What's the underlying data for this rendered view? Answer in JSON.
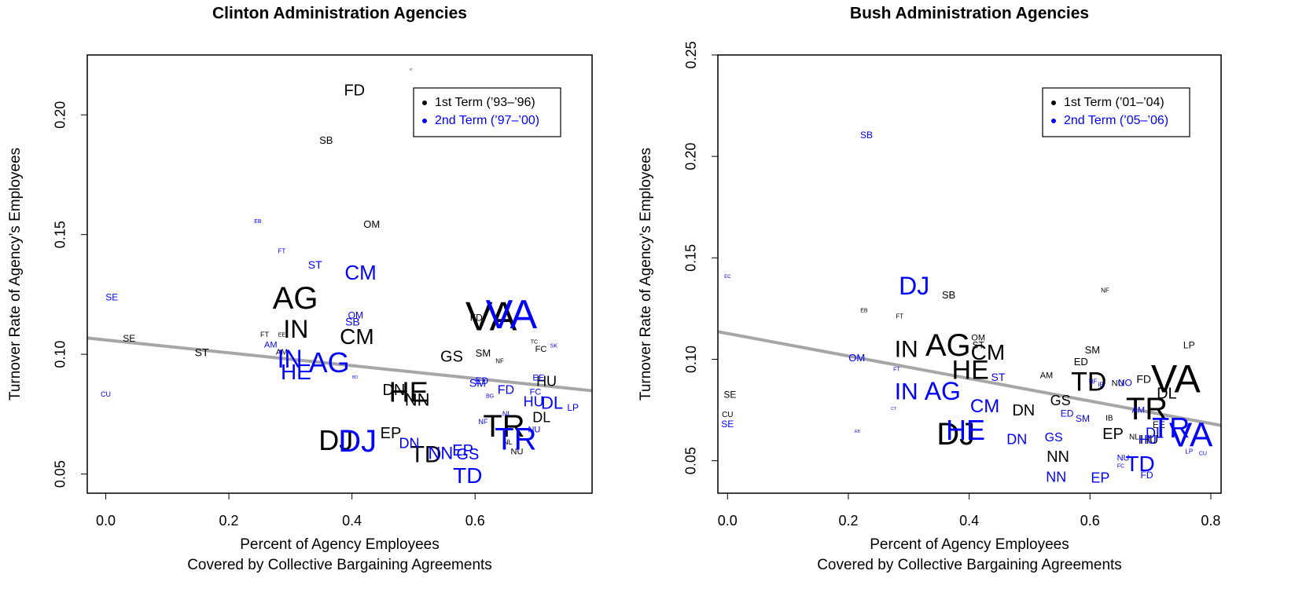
{
  "chart_data": [
    {
      "type": "scatter",
      "title": "Clinton Administration Agencies",
      "xlabel": [
        "Percent of Agency Employees",
        "Covered by Collective Bargaining Agreements"
      ],
      "ylabel": "Turnover Rate of Agency’s Employees",
      "xlim": [
        -0.03,
        0.79
      ],
      "ylim": [
        0.042,
        0.225
      ],
      "xticks": [
        {
          "value": 0,
          "label": "0.0"
        },
        0.2,
        0.4,
        0.6
      ],
      "yticks": [
        0.05,
        {
          "value": 0.1,
          "label": "0.10"
        },
        0.15,
        {
          "value": 0.2,
          "label": "0.20"
        }
      ],
      "trend_line": {
        "x": [
          -0.03,
          0.79
        ],
        "y": [
          0.1068,
          0.0848
        ],
        "color": "#a6a6a6"
      },
      "legend": "top right",
      "series": [
        {
          "name": "1st Term (’93–’96)",
          "color": "#000000",
          "labels": [
            "FD",
            "SB",
            "OM",
            "AG",
            "IN",
            "CM",
            "SE",
            "ST",
            "FT",
            "EE",
            "AM",
            "VA",
            "FD",
            "TC",
            "FC",
            "GS",
            "SM",
            "NF",
            "HU",
            "DN",
            "HE",
            "NN",
            "TR",
            "DL",
            "NL",
            "NU",
            "EP",
            "DJ",
            "TD",
            "IC"
          ],
          "x": [
            0.404,
            0.358,
            0.432,
            0.308,
            0.309,
            0.408,
            0.038,
            0.156,
            0.258,
            0.286,
            0.286,
            0.626,
            0.602,
            0.696,
            0.707,
            0.562,
            0.613,
            0.64,
            0.716,
            0.468,
            0.492,
            0.506,
            0.647,
            0.708,
            0.653,
            0.668,
            0.463,
            0.374,
            0.52,
            0.496
          ],
          "y": [
            0.2098,
            0.189,
            0.154,
            0.1225,
            0.1097,
            0.1068,
            0.1064,
            0.1005,
            0.108,
            0.108,
            0.1008,
            0.1146,
            0.115,
            0.105,
            0.102,
            0.0986,
            0.1002,
            0.0969,
            0.0884,
            0.0848,
            0.0834,
            0.0805,
            0.069,
            0.0733,
            0.0631,
            0.0592,
            0.0667,
            0.0631,
            0.0575,
            0.219
          ],
          "size": [
            20,
            13,
            13,
            40,
            32,
            28,
            12,
            14,
            9,
            7,
            10,
            52,
            12,
            7,
            11,
            20,
            13,
            8,
            18,
            20,
            36,
            22,
            40,
            18,
            9,
            11,
            20,
            36,
            30,
            4
          ]
        },
        {
          "name": "2nd Term (’97–’00)",
          "color": "#0000ff",
          "labels": [
            "EB",
            "FT",
            "ST",
            "CM",
            "SE",
            "OM",
            "SB",
            "AM",
            "IN",
            "AG",
            "HE",
            "CU",
            "BD",
            "SM",
            "ED",
            "EE",
            "FD",
            "BG",
            "FC",
            "HU",
            "DL",
            "LP",
            "NI",
            "NF",
            "SK",
            "TR",
            "NU",
            "VA",
            "DJ",
            "DN",
            "NN",
            "EP",
            "GS",
            "TD"
          ],
          "x": [
            0.247,
            0.286,
            0.34,
            0.414,
            0.01,
            0.406,
            0.401,
            0.268,
            0.299,
            0.363,
            0.309,
            0,
            0.405,
            0.604,
            0.611,
            0.703,
            0.65,
            0.624,
            0.698,
            0.695,
            0.725,
            0.759,
            0.65,
            0.613,
            0.728,
            0.666,
            0.696,
            0.659,
            0.409,
            0.493,
            0.544,
            0.58,
            0.588,
            0.588
          ],
          "y": [
            0.1554,
            0.1429,
            0.137,
            0.1334,
            0.1235,
            0.116,
            0.1133,
            0.1038,
            0.0972,
            0.0956,
            0.092,
            0.0831,
            0.0903,
            0.0877,
            0.0887,
            0.09,
            0.0848,
            0.0825,
            0.0841,
            0.0798,
            0.0792,
            0.0775,
            0.0749,
            0.0716,
            0.1035,
            0.0637,
            0.0684,
            0.1153,
            0.0628,
            0.0624,
            0.0582,
            0.0595,
            0.0578,
            0.0487
          ],
          "size": [
            7,
            8,
            14,
            26,
            12,
            12,
            14,
            11,
            32,
            36,
            28,
            9,
            5,
            14,
            12,
            11,
            16,
            7,
            11,
            18,
            22,
            12,
            9,
            9,
            7,
            40,
            11,
            52,
            40,
            18,
            22,
            20,
            20,
            28
          ]
        }
      ]
    },
    {
      "type": "scatter",
      "title": "Bush Administration Agencies",
      "xlabel": [
        "Percent of Agency Employees",
        "Covered by Collective Bargaining Agreements"
      ],
      "ylabel": "Turnover Rate of Agency’s Employees",
      "xlim": [
        -0.016,
        0.817
      ],
      "ylim": [
        0.034,
        0.25
      ],
      "xticks": [
        {
          "value": 0,
          "label": "0.0"
        },
        0.2,
        0.4,
        0.6,
        0.8
      ],
      "yticks": [
        0.05,
        {
          "value": 0.1,
          "label": "0.10"
        },
        0.15,
        {
          "value": 0.2,
          "label": "0.20"
        },
        0.25
      ],
      "trend_line": {
        "x": [
          -0.016,
          0.817
        ],
        "y": [
          0.1136,
          0.0674
        ],
        "color": "#a6a6a6"
      },
      "legend": "top right",
      "series": [
        {
          "name": "1st Term (’01–’04)",
          "color": "#000000",
          "labels": [
            "SB",
            "EB",
            "FT",
            "NF",
            "OM",
            "ST",
            "IN",
            "AG",
            "CM",
            "HE",
            "SM",
            "ED",
            "LP",
            "AM",
            "TD",
            "NU",
            "FD",
            "VA",
            "DL",
            "TR",
            "DN",
            "GS",
            "IB",
            "EP",
            "NN",
            "DJ",
            "SE",
            "CU",
            "EE",
            "NL",
            "HU"
          ],
          "x": [
            0.366,
            0.226,
            0.285,
            0.625,
            0.415,
            0.415,
            0.296,
            0.365,
            0.431,
            0.402,
            0.604,
            0.585,
            0.764,
            0.528,
            0.598,
            0.646,
            0.689,
            0.742,
            0.727,
            0.694,
            0.49,
            0.551,
            0.632,
            0.638,
            0.547,
            0.378,
            0.004,
            0,
            0.714,
            0.673,
            0.698
          ],
          "y": [
            0.1314,
            0.124,
            0.1209,
            0.1337,
            0.1105,
            0.1066,
            0.1043,
            0.1058,
            0.1027,
            0.0938,
            0.1043,
            0.0984,
            0.1066,
            0.0919,
            0.088,
            0.088,
            0.0899,
            0.0888,
            0.0826,
            0.0744,
            0.0744,
            0.0791,
            0.0709,
            0.0628,
            0.0516,
            0.062,
            0.0822,
            0.0725,
            0.0674,
            0.0616,
            0.0601
          ],
          "size": [
            13,
            7,
            8,
            8,
            11,
            12,
            30,
            40,
            28,
            34,
            13,
            13,
            12,
            11,
            34,
            11,
            14,
            50,
            20,
            40,
            20,
            18,
            10,
            20,
            20,
            40,
            12,
            10,
            12,
            10,
            16
          ]
        },
        {
          "name": "2nd Term (’05–’06)",
          "color": "#0000ff",
          "labels": [
            "SB",
            "EC",
            "DJ",
            "OM",
            "FT",
            "ST",
            "IN",
            "AG",
            "CM",
            "CT",
            "SE",
            "EB",
            "HE",
            "DN",
            "GS",
            "ED",
            "SM",
            "NF",
            "IB",
            "NO",
            "HU",
            "DL",
            "TR",
            "VA",
            "LP",
            "CU",
            "NU",
            "FC",
            "TD",
            "FD",
            "NN",
            "EP",
            "AM"
          ],
          "x": [
            0.23,
            0,
            0.309,
            0.214,
            0.28,
            0.448,
            0.296,
            0.356,
            0.426,
            0.275,
            0,
            0.215,
            0.394,
            0.479,
            0.54,
            0.562,
            0.588,
            0.605,
            0.618,
            0.658,
            0.695,
            0.707,
            0.734,
            0.767,
            0.764,
            0.787,
            0.655,
            0.651,
            0.683,
            0.694,
            0.544,
            0.617,
            0.68
          ],
          "y": [
            0.2101,
            0.1407,
            0.1353,
            0.1004,
            0.095,
            0.0907,
            0.0833,
            0.0833,
            0.0764,
            0.0756,
            0.0678,
            0.0643,
            0.064,
            0.0601,
            0.0612,
            0.0729,
            0.0705,
            0.0888,
            0.0872,
            0.088,
            0.0601,
            0.0632,
            0.0651,
            0.0616,
            0.0543,
            0.0535,
            0.0512,
            0.0473,
            0.0477,
            0.0426,
            0.0415,
            0.0411,
            0.0748
          ],
          "size": [
            12,
            6,
            32,
            13,
            7,
            14,
            30,
            32,
            24,
            5,
            12,
            5,
            36,
            18,
            16,
            12,
            12,
            8,
            8,
            12,
            16,
            18,
            36,
            44,
            8,
            7,
            11,
            7,
            28,
            12,
            18,
            18,
            11
          ]
        }
      ]
    }
  ]
}
